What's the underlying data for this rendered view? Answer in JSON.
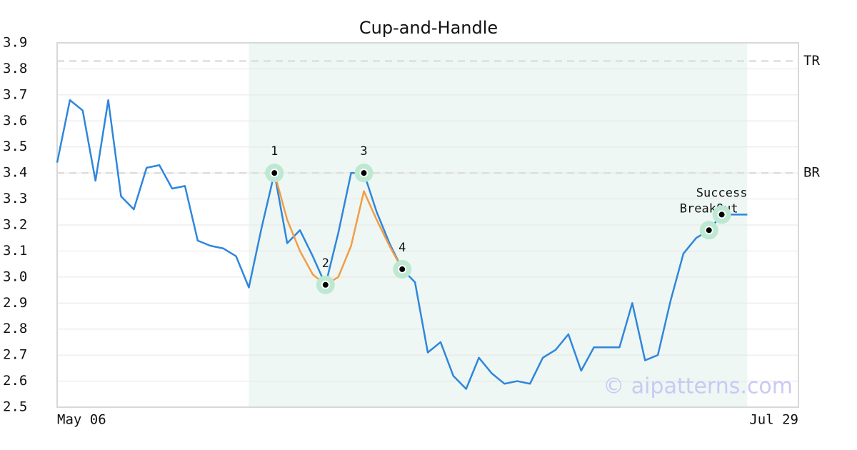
{
  "chart_data": {
    "type": "line",
    "title": "Cup-and-Handle",
    "xlim": [
      0,
      58
    ],
    "xticks": [
      {
        "value": 0,
        "label": "May 06"
      },
      {
        "value": 58,
        "label": "Jul 29"
      }
    ],
    "ylim": [
      2.5,
      3.9
    ],
    "yticks": [
      {
        "value": 2.5,
        "label": "2.5"
      },
      2.6,
      2.7,
      2.8,
      2.9,
      {
        "value": 3,
        "label": "3.0"
      },
      3.1,
      3.2,
      3.3,
      3.4,
      3.5,
      3.6,
      3.7,
      3.8,
      3.9
    ],
    "grid": true,
    "shaded_range": [
      15,
      54
    ],
    "series": [
      {
        "color": "#2f86dc",
        "x": [
          0,
          1,
          2,
          3,
          4,
          5,
          6,
          7,
          8,
          9,
          10,
          11,
          12,
          13,
          14,
          15,
          16,
          17,
          18,
          19,
          20,
          21,
          22,
          23,
          24,
          25,
          26,
          27,
          28,
          29,
          30,
          31,
          32,
          33,
          34,
          35,
          36,
          37,
          38,
          39,
          40,
          41,
          42,
          43,
          44,
          45,
          46,
          47,
          48,
          49,
          50,
          51,
          52,
          53,
          54
        ],
        "values": [
          3.44,
          3.68,
          3.64,
          3.37,
          3.68,
          3.31,
          3.26,
          3.42,
          3.43,
          3.34,
          3.35,
          3.14,
          3.12,
          3.11,
          3.08,
          2.96,
          3.19,
          3.4,
          3.13,
          3.18,
          3.08,
          2.97,
          3.17,
          3.4,
          3.4,
          3.25,
          3.13,
          3.03,
          2.98,
          2.71,
          2.75,
          2.62,
          2.57,
          2.69,
          2.63,
          2.59,
          2.6,
          2.59,
          2.69,
          2.72,
          2.78,
          2.64,
          2.73,
          2.73,
          2.73,
          2.9,
          2.68,
          2.7,
          2.91,
          3.09,
          3.15,
          3.18,
          3.24,
          3.24,
          3.24
        ]
      },
      {
        "color": "#f39c45",
        "x": [
          17,
          18,
          19,
          20,
          21,
          22,
          23,
          24,
          25,
          26,
          27
        ],
        "values": [
          3.4,
          3.22,
          3.1,
          3.01,
          2.97,
          3.0,
          3.12,
          3.33,
          3.22,
          3.12,
          3.03
        ]
      }
    ],
    "levels": [
      {
        "label": "TR",
        "value": 3.83
      },
      {
        "label": "BR",
        "value": 3.4
      }
    ],
    "points": [
      {
        "label": "1",
        "x": 17,
        "value": 3.4
      },
      {
        "label": "2",
        "x": 21,
        "value": 2.97
      },
      {
        "label": "3",
        "x": 24,
        "value": 3.4
      },
      {
        "label": "4",
        "x": 27,
        "value": 3.03
      },
      {
        "label": "BreakOut",
        "x": 51,
        "value": 3.18
      },
      {
        "label": "Success",
        "x": 52,
        "value": 3.24
      }
    ],
    "watermark": "© aipatterns.com"
  }
}
